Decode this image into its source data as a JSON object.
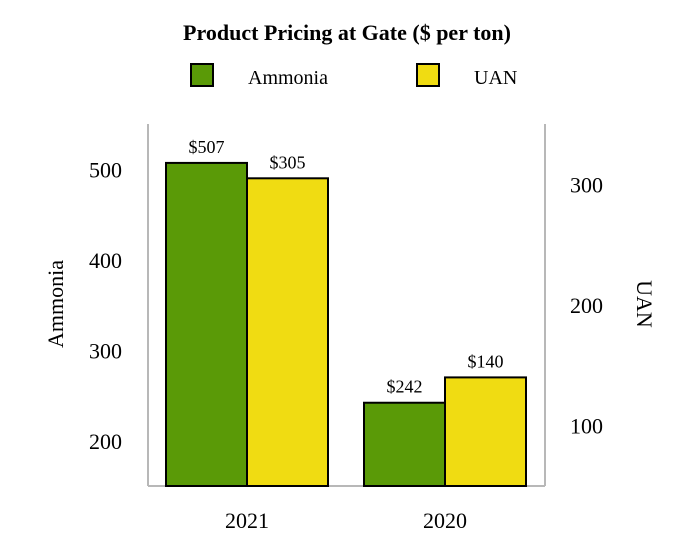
{
  "chart_data": {
    "type": "bar",
    "title": "Product Pricing at Gate ($ per ton)",
    "categories": [
      "2021",
      "2020"
    ],
    "series": [
      {
        "name": "Ammonia",
        "axis": "left",
        "color": "#5a9a07",
        "values": [
          507,
          242
        ],
        "labels": [
          "$507",
          "$242"
        ]
      },
      {
        "name": "UAN",
        "axis": "right",
        "color": "#f0dc12",
        "values": [
          305,
          140
        ],
        "labels": [
          "$305",
          "$140"
        ]
      }
    ],
    "left_axis": {
      "label": "Ammonia",
      "range": [
        150,
        550
      ],
      "ticks": [
        200,
        300,
        400,
        500
      ],
      "tick_labels": [
        "200",
        "300",
        "400",
        "500"
      ]
    },
    "right_axis": {
      "label": "UAN",
      "range": [
        50,
        350
      ],
      "ticks": [
        100,
        200,
        300
      ],
      "tick_labels": [
        "100",
        "200",
        "300"
      ]
    },
    "legend_position": "top-center",
    "grid": false
  }
}
